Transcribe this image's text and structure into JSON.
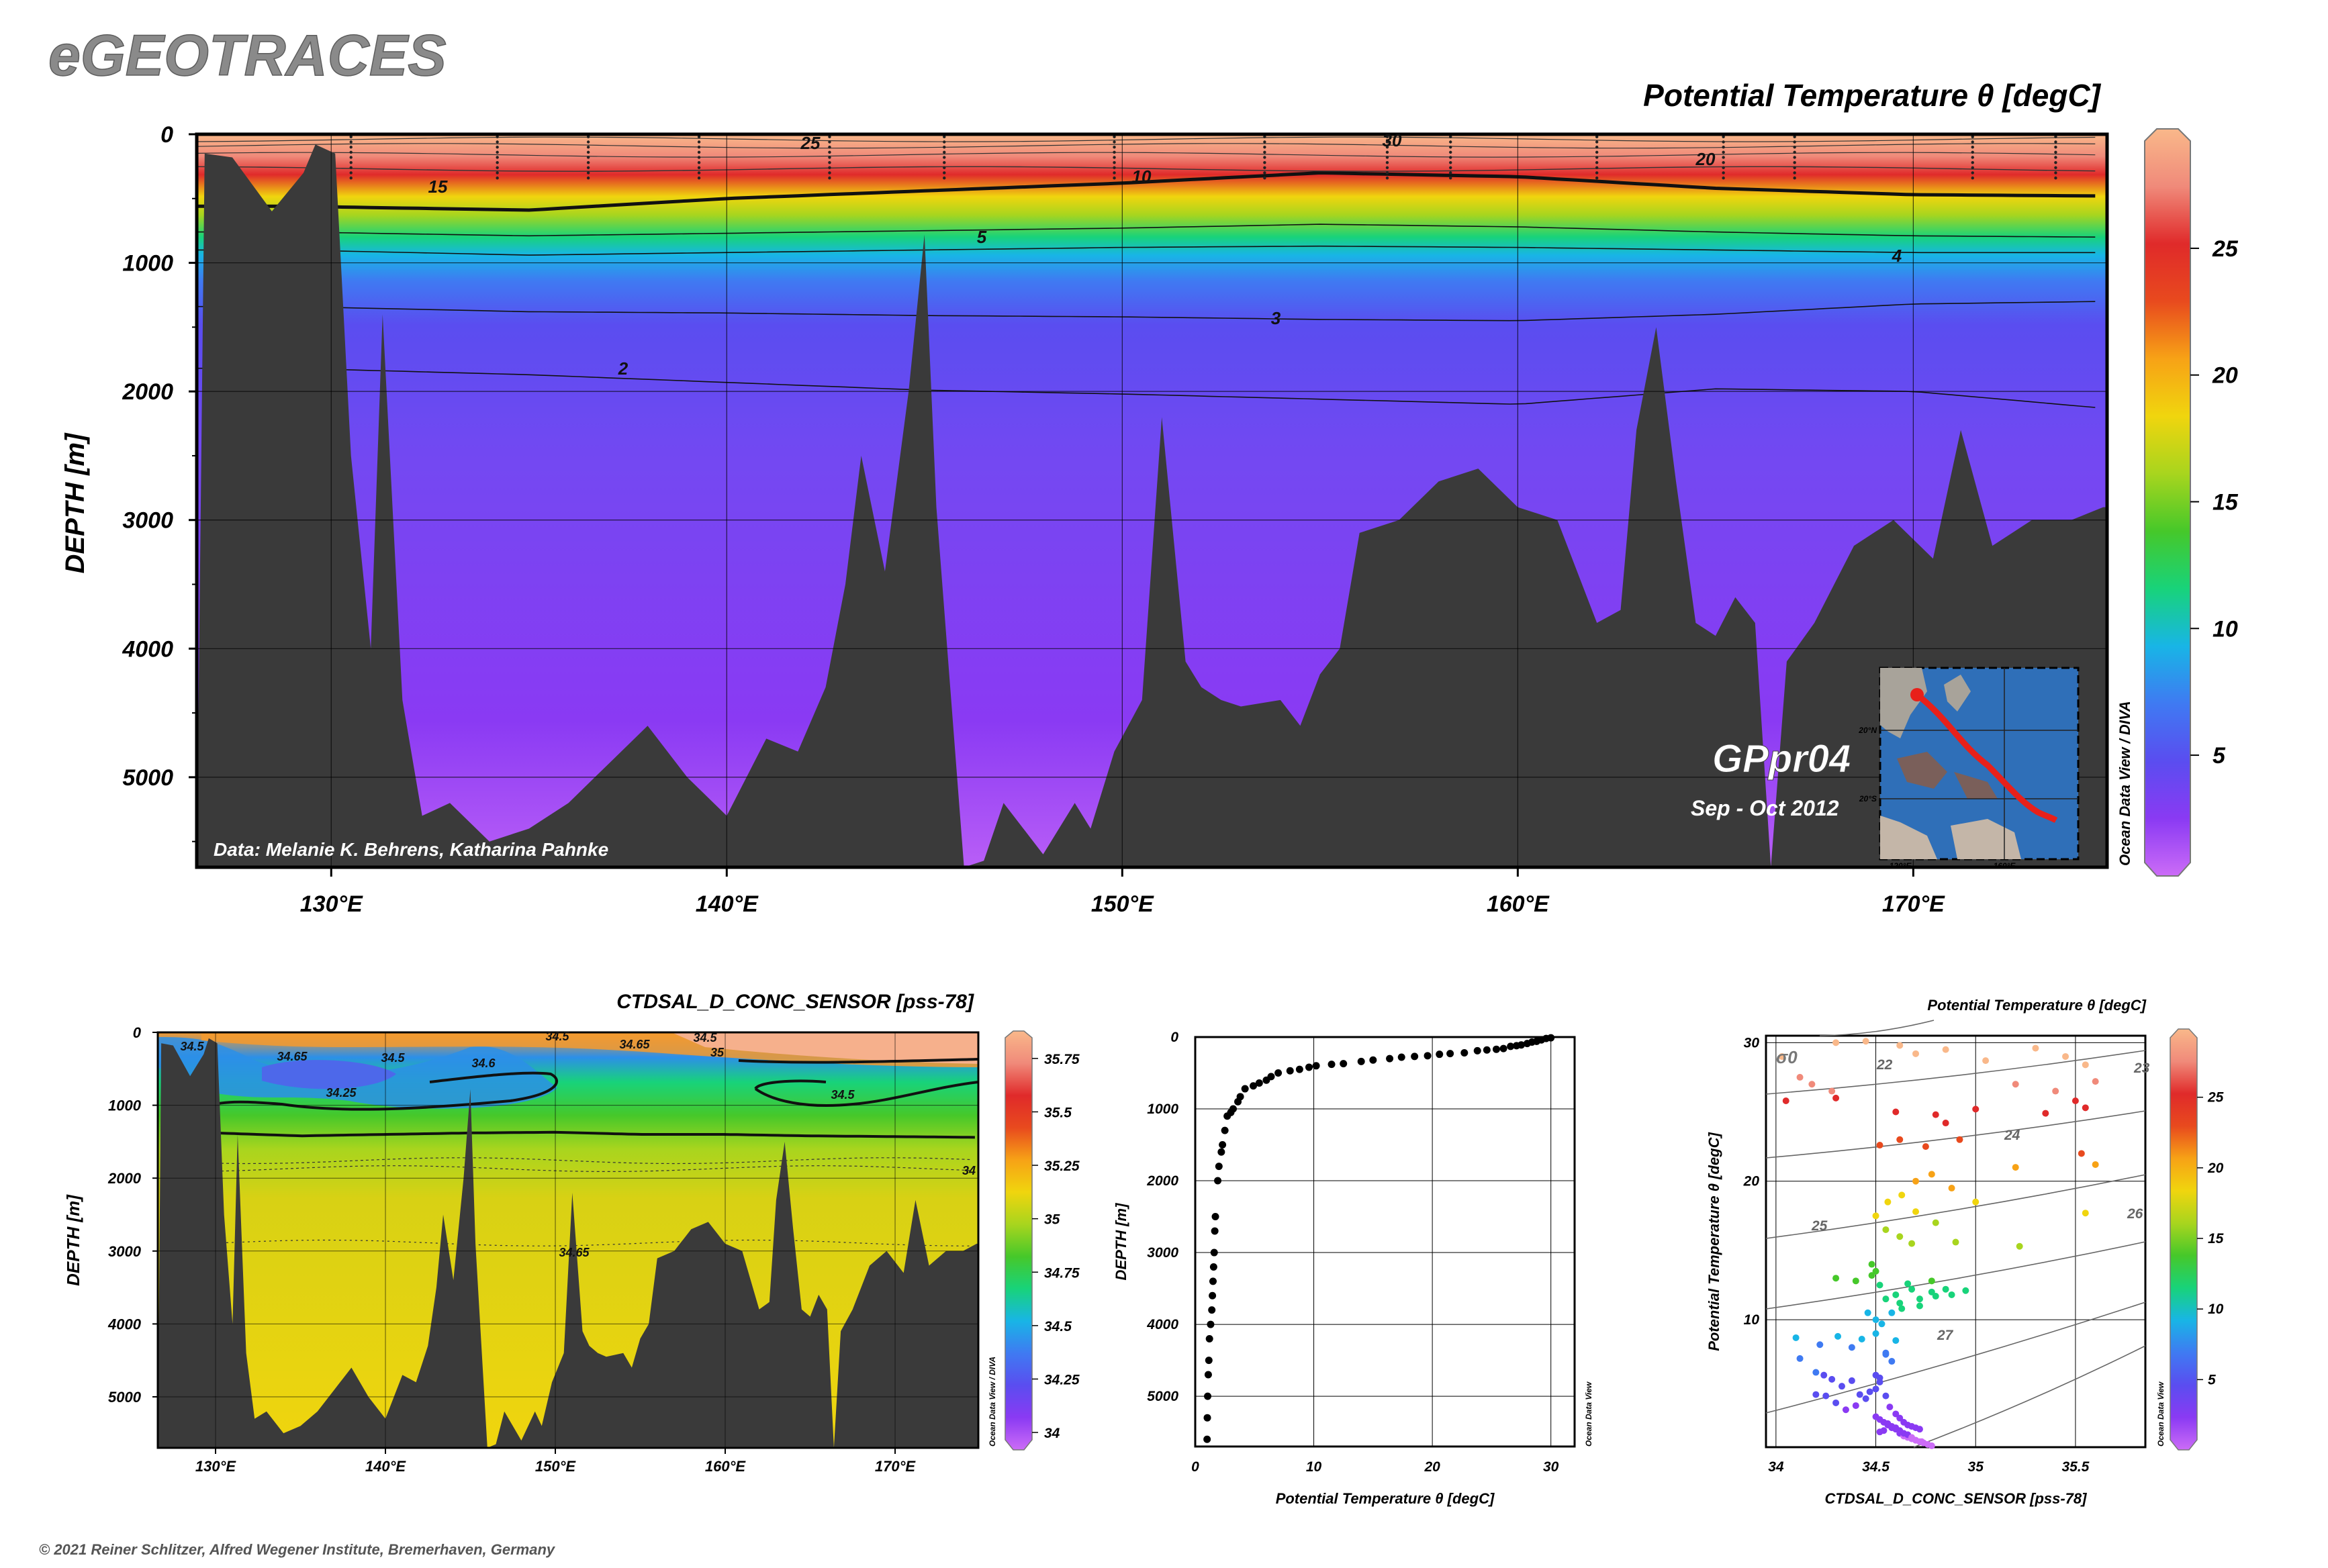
{
  "brand": "eGEOTRACES",
  "copyright": "© 2021 Reiner Schlitzer, Alfred Wegener Institute, Bremerhaven, Germany",
  "colors": {
    "bathymetry": "#3a3a3a",
    "point": "#000000",
    "track": "#e8201a",
    "gradient": [
      "#cc6cf7",
      "#8a3af3",
      "#5a4df0",
      "#3f7af2",
      "#18b5e6",
      "#18d37a",
      "#46c82a",
      "#a8d51e",
      "#f0d50e",
      "#f7a216",
      "#e84a1e",
      "#e02a2a",
      "#f08a7a",
      "#f9b88a"
    ]
  },
  "main": {
    "title": "Potential Temperature θ [degC]",
    "ylabel": "DEPTH [m]",
    "yticks": [
      "0",
      "1000",
      "2000",
      "3000",
      "4000",
      "5000"
    ],
    "xticks": [
      "130°E",
      "140°E",
      "150°E",
      "160°E",
      "170°E"
    ],
    "colorbar_ticks": [
      "5",
      "10",
      "15",
      "20",
      "25"
    ],
    "credit": "Data: Melanie K. Behrens, Katharina Pahnke",
    "cruise": "GPpr04",
    "dates": "Sep - Oct 2012",
    "odv_label": "Ocean Data View / DIVA",
    "inset": {
      "lat_ticks": [
        "20°N",
        "20°S"
      ],
      "lon_ticks": [
        "120°E",
        "160°E"
      ]
    },
    "contour_labels": [
      "30",
      "25",
      "20",
      "15",
      "10",
      "5",
      "4",
      "3",
      "2"
    ]
  },
  "sal": {
    "title": "CTDSAL_D_CONC_SENSOR [pss-78]",
    "ylabel": "DEPTH [m]",
    "yticks": [
      "0",
      "1000",
      "2000",
      "3000",
      "4000",
      "5000"
    ],
    "xticks": [
      "130°E",
      "140°E",
      "150°E",
      "160°E",
      "170°E"
    ],
    "colorbar_ticks": [
      "34",
      "34.25",
      "34.5",
      "34.75",
      "35",
      "35.25",
      "35.5",
      "35.75"
    ],
    "odv_label": "Ocean Data View / DIVA",
    "contour_labels": [
      "34.5",
      "34.65",
      "34.5",
      "34.6",
      "34.25",
      "34.5",
      "35",
      "34.5",
      "34.65",
      "34.5",
      "34"
    ]
  },
  "profile": {
    "xlabel": "Potential Temperature θ [degC]",
    "ylabel": "DEPTH [m]",
    "xticks": [
      "0",
      "10",
      "20",
      "30"
    ],
    "yticks": [
      "0",
      "1000",
      "2000",
      "3000",
      "4000",
      "5000"
    ],
    "odv_label": "Ocean Data View"
  },
  "ts": {
    "title": "Potential Temperature θ [degC]",
    "xlabel": "CTDSAL_D_CONC_SENSOR [pss-78]",
    "ylabel": "Potential Temperature θ [degC]",
    "xticks": [
      "34",
      "34.5",
      "35",
      "35.5"
    ],
    "yticks": [
      "10",
      "20",
      "30"
    ],
    "colorbar_ticks": [
      "5",
      "10",
      "15",
      "20",
      "25"
    ],
    "odv_label": "Ocean Data View",
    "sigma_label": "σ0",
    "isopycnal_labels": [
      "22",
      "23",
      "24",
      "25",
      "26",
      "27"
    ]
  },
  "chart_data": [
    {
      "type": "heatmap",
      "title": "Potential Temperature θ [degC]",
      "xlabel": "",
      "ylabel": "DEPTH [m]",
      "xlim": [
        126.6,
        174.9
      ],
      "ylim": [
        5700,
        0
      ],
      "x_ticks": [
        130,
        140,
        150,
        160,
        170
      ],
      "y_ticks": [
        0,
        1000,
        2000,
        3000,
        4000,
        5000
      ],
      "colorbar": {
        "label": "Potential Temperature θ [degC]",
        "range": [
          0.5,
          29.5
        ],
        "ticks": [
          5,
          10,
          15,
          20,
          25
        ]
      },
      "isotherm_depths": {
        "lon": [
          129,
          135,
          140,
          145,
          150,
          155,
          160,
          165,
          170,
          174.8
        ],
        "t10": [
          560,
          590,
          500,
          440,
          380,
          300,
          330,
          420,
          470,
          480
        ],
        "t5": [
          760,
          790,
          770,
          750,
          730,
          700,
          720,
          760,
          790,
          800
        ],
        "t4": [
          900,
          940,
          920,
          900,
          880,
          870,
          880,
          900,
          920,
          920
        ],
        "t3": [
          1340,
          1380,
          1390,
          1410,
          1420,
          1440,
          1450,
          1400,
          1320,
          1300
        ],
        "t2": [
          1820,
          1870,
          1930,
          1990,
          2020,
          2060,
          2100,
          1980,
          2000,
          2130
        ]
      },
      "bottom_depth": {
        "lon": [
          126.8,
          127.5,
          128.5,
          129.3,
          129.6,
          130.1,
          130.5,
          131.0,
          131.3,
          131.8,
          132.3,
          133.0,
          134.0,
          135.0,
          136.0,
          137.0,
          138.0,
          139.0,
          140.0,
          141.0,
          141.8,
          142.5,
          143.0,
          143.4,
          144.0,
          144.6,
          145.0,
          145.3,
          146.0,
          146.5,
          147.0,
          148.0,
          148.8,
          149.2,
          149.8,
          150.5,
          151.0,
          151.6,
          152.0,
          152.5,
          153.0,
          154.0,
          154.5,
          155.0,
          155.5,
          156.0,
          157.0,
          158.0,
          159.0,
          160.0,
          161.0,
          162.0,
          162.6,
          163.0,
          163.5,
          164.0,
          164.5,
          165.0,
          165.5,
          166.0,
          166.4,
          166.8,
          167.5,
          168.5,
          169.5,
          170.5,
          171.2,
          172.0,
          173.0,
          174.0,
          174.8
        ],
        "depth": [
          150,
          180,
          600,
          300,
          80,
          150,
          2500,
          4000,
          1400,
          4400,
          5300,
          5200,
          5500,
          5400,
          5200,
          4900,
          4600,
          5000,
          5300,
          4700,
          4800,
          4300,
          3500,
          2500,
          3400,
          2000,
          780,
          2900,
          5700,
          5650,
          5200,
          5600,
          5200,
          5400,
          4800,
          4400,
          2200,
          4100,
          4300,
          4400,
          4450,
          4400,
          4600,
          4200,
          4000,
          3100,
          3000,
          2700,
          2600,
          2900,
          3000,
          3800,
          3700,
          2300,
          1500,
          2700,
          3800,
          3900,
          3600,
          3800,
          5700,
          4100,
          3800,
          3200,
          3000,
          3300,
          2300,
          3200,
          3000,
          3000,
          2900
        ]
      },
      "section_track": {
        "lon_start": 131.0,
        "lat_start": 35.0,
        "lon_end": 175.0,
        "lat_end": -25.0
      }
    },
    {
      "type": "heatmap",
      "title": "CTDSAL_D_CONC_SENSOR [pss-78]",
      "xlabel": "",
      "ylabel": "DEPTH [m]",
      "xlim": [
        126.6,
        174.9
      ],
      "ylim": [
        5700,
        0
      ],
      "x_ticks": [
        130,
        140,
        150,
        160,
        170
      ],
      "y_ticks": [
        0,
        1000,
        2000,
        3000,
        4000,
        5000
      ],
      "colorbar": {
        "label": "CTDSAL_D_CONC_SENSOR [pss-78]",
        "range": [
          33.95,
          35.85
        ],
        "ticks": [
          34,
          34.25,
          34.5,
          34.75,
          35,
          35.25,
          35.5,
          35.75
        ]
      },
      "isohaline_34_5_depth": {
        "lon": [
          130,
          135,
          140,
          145,
          150,
          155,
          160,
          165,
          170,
          174.8
        ],
        "depth": [
          1380,
          1420,
          1400,
          1380,
          1370,
          1400,
          1400,
          1420,
          1430,
          1440
        ]
      }
    },
    {
      "type": "scatter",
      "title": "",
      "xlabel": "Potential Temperature θ [degC]",
      "ylabel": "DEPTH [m]",
      "xlim": [
        0,
        32
      ],
      "ylim": [
        5700,
        0
      ],
      "x_ticks": [
        0,
        10,
        20,
        30
      ],
      "y_ticks": [
        0,
        1000,
        2000,
        3000,
        4000,
        5000
      ],
      "series": [
        {
          "x": [
            30.0,
            29.6,
            29.2,
            28.8,
            28.4,
            28.0,
            27.5,
            27.1,
            26.6,
            26.0,
            25.4,
            24.6,
            23.8,
            22.7,
            21.5,
            20.6,
            19.6,
            18.5,
            17.4,
            16.4,
            15.0,
            14.0,
            12.5,
            11.5,
            10.2,
            9.6,
            8.8,
            8.0,
            7.0,
            6.4,
            6.0,
            5.4,
            4.9,
            4.2,
            3.8,
            3.6,
            3.2,
            3.0,
            2.7,
            2.5,
            2.3,
            2.2,
            2.0,
            1.9,
            1.7,
            1.65,
            1.6,
            1.55,
            1.5,
            1.45,
            1.4,
            1.3,
            1.2,
            1.15,
            1.1,
            1.05,
            1.02,
            1.0
          ],
          "y": [
            10,
            20,
            40,
            60,
            70,
            90,
            110,
            120,
            130,
            160,
            170,
            180,
            190,
            220,
            230,
            240,
            260,
            270,
            280,
            300,
            320,
            340,
            370,
            380,
            400,
            420,
            450,
            470,
            500,
            550,
            600,
            640,
            680,
            720,
            830,
            900,
            1000,
            1050,
            1100,
            1300,
            1500,
            1600,
            1800,
            2000,
            2500,
            2700,
            3000,
            3200,
            3400,
            3600,
            3800,
            4000,
            4200,
            4500,
            4700,
            5000,
            5300,
            5600
          ]
        }
      ]
    },
    {
      "type": "scatter",
      "title": "Potential Temperature θ [degC]",
      "xlabel": "CTDSAL_D_CONC_SENSOR [pss-78]",
      "ylabel": "Potential Temperature θ [degC]",
      "xlim": [
        33.95,
        35.85
      ],
      "ylim": [
        0.8,
        30.5
      ],
      "x_ticks": [
        34,
        34.5,
        35,
        35.5
      ],
      "y_ticks": [
        10,
        20,
        30
      ],
      "color_by": "Potential Temperature θ [degC]",
      "series": [
        {
          "salinity": [
            34.05,
            34.12,
            34.3,
            34.45,
            34.62,
            34.7,
            34.85,
            35.05,
            35.3,
            35.45,
            35.55,
            35.6,
            34.03,
            34.18,
            34.28,
            35.2,
            35.4,
            35.5,
            35.55,
            34.3,
            34.6,
            34.8,
            35.0,
            35.35,
            35.53,
            34.52,
            34.62,
            34.75,
            34.85,
            34.92,
            35.2,
            35.6,
            34.5,
            34.56,
            34.63,
            34.7,
            34.7,
            34.78,
            34.88,
            35.0,
            35.55,
            34.48,
            34.55,
            34.62,
            34.68,
            34.8,
            34.9,
            35.22,
            34.3,
            34.4,
            34.48,
            34.5,
            34.52,
            34.6,
            34.66,
            34.78,
            34.5,
            34.55,
            34.62,
            34.68,
            34.72,
            34.78,
            34.85,
            34.46,
            34.53,
            34.58,
            34.63,
            34.72,
            34.8,
            34.88,
            34.95,
            34.1,
            34.22,
            34.31,
            34.38,
            34.43,
            34.5,
            34.55,
            34.6,
            34.12,
            34.2,
            34.24,
            34.28,
            34.33,
            34.38,
            34.42,
            34.47,
            34.5,
            34.52,
            34.55,
            34.58,
            34.2,
            34.25,
            34.3,
            34.35,
            34.4,
            34.45,
            34.5,
            34.52,
            34.55,
            34.57,
            34.6,
            34.62,
            34.64,
            34.66,
            34.68,
            34.7,
            34.72,
            34.52,
            34.54,
            34.56,
            34.58,
            34.6,
            34.62,
            34.64,
            34.66,
            34.68,
            34.7,
            34.72,
            34.74,
            34.76,
            34.78,
            34.5,
            34.52,
            34.54,
            34.56,
            34.58,
            34.6,
            34.62,
            34.64,
            34.66,
            34.68,
            34.7,
            34.73
          ],
          "theta": [
            25.8,
            27.5,
            30.0,
            30.1,
            29.8,
            29.2,
            29.5,
            28.7,
            29.6,
            29.0,
            28.4,
            27.2,
            29.0,
            27.0,
            26.5,
            27.0,
            26.5,
            25.8,
            25.3,
            26.0,
            25.0,
            24.8,
            25.2,
            24.9,
            22.0,
            22.6,
            23.0,
            22.5,
            24.2,
            23.0,
            21.0,
            21.2,
            17.5,
            18.5,
            19.0,
            20.0,
            17.8,
            20.5,
            19.5,
            18.5,
            17.7,
            14.0,
            16.5,
            16.0,
            15.5,
            17.0,
            15.6,
            15.3,
            13.0,
            12.8,
            13.2,
            13.5,
            12.5,
            11.8,
            12.6,
            12.8,
            10.0,
            11.5,
            11.2,
            12.2,
            11.0,
            12.0,
            12.2,
            10.5,
            9.7,
            10.5,
            10.8,
            11.5,
            11.7,
            11.8,
            12.1,
            8.7,
            8.2,
            8.8,
            8.0,
            8.6,
            9.0,
            7.6,
            8.5,
            7.2,
            6.2,
            6.0,
            5.7,
            5.2,
            5.6,
            4.6,
            4.8,
            6.0,
            5.5,
            7.5,
            7.0,
            4.6,
            4.5,
            4.0,
            3.5,
            3.8,
            4.3,
            5.0,
            5.8,
            4.5,
            3.7,
            3.2,
            2.9,
            2.6,
            2.4,
            2.3,
            2.2,
            2.1,
            1.9,
            2.0,
            2.4,
            2.2,
            2.1,
            1.8,
            1.6,
            1.5,
            1.4,
            1.3,
            1.2,
            1.1,
            1.0,
            0.9,
            3.0,
            2.8,
            2.6,
            2.5,
            2.3,
            2.2,
            2.0,
            1.8,
            1.7,
            1.5,
            1.3,
            1.2
          ]
        }
      ]
    }
  ]
}
